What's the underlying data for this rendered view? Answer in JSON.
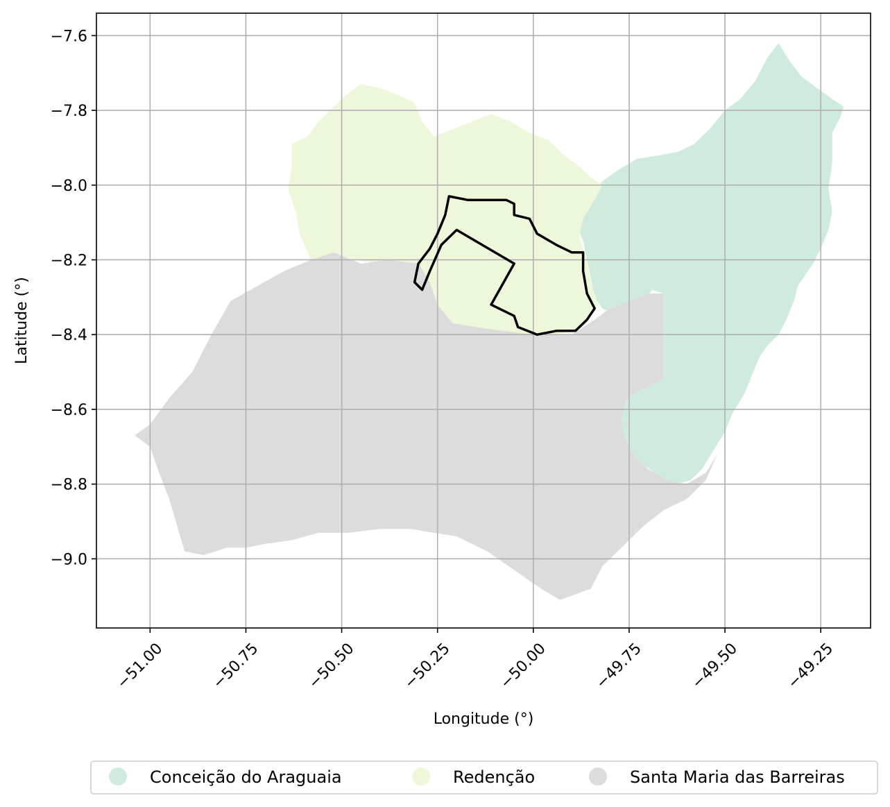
{
  "map": {
    "xlabel": "Longitude (°)",
    "ylabel": "Latitude (°)",
    "xlim": [
      -51.14,
      -49.12
    ],
    "ylim": [
      -9.185,
      -7.54
    ],
    "x_ticks": [
      -51.0,
      -50.75,
      -50.5,
      -50.25,
      -50.0,
      -49.75,
      -49.5,
      -49.25
    ],
    "x_tick_labels": [
      "−51.00",
      "−50.75",
      "−50.50",
      "−50.25",
      "−50.00",
      "−49.75",
      "−49.50",
      "−49.25"
    ],
    "y_ticks": [
      -7.6,
      -7.8,
      -8.0,
      -8.2,
      -8.4,
      -8.6,
      -8.8,
      -9.0
    ],
    "y_tick_labels": [
      "−7.6",
      "−7.8",
      "−8.0",
      "−8.2",
      "−8.4",
      "−8.6",
      "−8.8",
      "−9.0"
    ],
    "grid": true,
    "legend_position": "below",
    "regions": [
      {
        "name": "Conceição do Araguaia",
        "color": "#cfebde",
        "polygon": [
          [
            -49.36,
            -7.62
          ],
          [
            -49.33,
            -7.67
          ],
          [
            -49.3,
            -7.71
          ],
          [
            -49.26,
            -7.74
          ],
          [
            -49.22,
            -7.77
          ],
          [
            -49.19,
            -7.79
          ],
          [
            -49.2,
            -7.82
          ],
          [
            -49.22,
            -7.86
          ],
          [
            -49.22,
            -7.94
          ],
          [
            -49.23,
            -8.01
          ],
          [
            -49.22,
            -8.07
          ],
          [
            -49.23,
            -8.12
          ],
          [
            -49.25,
            -8.17
          ],
          [
            -49.27,
            -8.21
          ],
          [
            -49.29,
            -8.24
          ],
          [
            -49.31,
            -8.27
          ],
          [
            -49.32,
            -8.31
          ],
          [
            -49.34,
            -8.36
          ],
          [
            -49.36,
            -8.4
          ],
          [
            -49.39,
            -8.43
          ],
          [
            -49.41,
            -8.46
          ],
          [
            -49.43,
            -8.51
          ],
          [
            -49.45,
            -8.56
          ],
          [
            -49.48,
            -8.61
          ],
          [
            -49.5,
            -8.66
          ],
          [
            -49.53,
            -8.71
          ],
          [
            -49.56,
            -8.76
          ],
          [
            -49.59,
            -8.79
          ],
          [
            -49.63,
            -8.8
          ],
          [
            -49.67,
            -8.78
          ],
          [
            -49.71,
            -8.75
          ],
          [
            -49.74,
            -8.72
          ],
          [
            -49.76,
            -8.68
          ],
          [
            -49.77,
            -8.63
          ],
          [
            -49.76,
            -8.58
          ],
          [
            -49.74,
            -8.56
          ],
          [
            -49.7,
            -8.54
          ],
          [
            -49.66,
            -8.52
          ],
          [
            -49.66,
            -8.4
          ],
          [
            -49.66,
            -8.29
          ],
          [
            -49.69,
            -8.28
          ],
          [
            -49.71,
            -8.31
          ],
          [
            -49.74,
            -8.34
          ],
          [
            -49.78,
            -8.35
          ],
          [
            -49.82,
            -8.33
          ],
          [
            -49.84,
            -8.3
          ],
          [
            -49.85,
            -8.25
          ],
          [
            -49.86,
            -8.2
          ],
          [
            -49.87,
            -8.15
          ],
          [
            -49.89,
            -8.1
          ],
          [
            -49.88,
            -8.06
          ],
          [
            -49.85,
            -8.02
          ],
          [
            -49.82,
            -7.99
          ],
          [
            -49.78,
            -7.96
          ],
          [
            -49.73,
            -7.93
          ],
          [
            -49.67,
            -7.92
          ],
          [
            -49.62,
            -7.91
          ],
          [
            -49.58,
            -7.89
          ],
          [
            -49.54,
            -7.85
          ],
          [
            -49.5,
            -7.8
          ],
          [
            -49.46,
            -7.77
          ],
          [
            -49.42,
            -7.72
          ],
          [
            -49.39,
            -7.66
          ]
        ]
      },
      {
        "name": "Redenção",
        "color": "#edf8da",
        "polygon": [
          [
            -50.63,
            -7.89
          ],
          [
            -50.59,
            -7.87
          ],
          [
            -50.56,
            -7.83
          ],
          [
            -50.53,
            -7.8
          ],
          [
            -50.49,
            -7.76
          ],
          [
            -50.45,
            -7.73
          ],
          [
            -50.4,
            -7.74
          ],
          [
            -50.35,
            -7.76
          ],
          [
            -50.31,
            -7.78
          ],
          [
            -50.29,
            -7.83
          ],
          [
            -50.26,
            -7.87
          ],
          [
            -50.21,
            -7.85
          ],
          [
            -50.16,
            -7.83
          ],
          [
            -50.11,
            -7.81
          ],
          [
            -50.06,
            -7.83
          ],
          [
            -50.01,
            -7.86
          ],
          [
            -49.96,
            -7.88
          ],
          [
            -49.92,
            -7.92
          ],
          [
            -49.88,
            -7.95
          ],
          [
            -49.85,
            -7.98
          ],
          [
            -49.82,
            -8.0
          ],
          [
            -49.84,
            -8.04
          ],
          [
            -49.87,
            -8.09
          ],
          [
            -49.88,
            -8.14
          ],
          [
            -49.86,
            -8.2
          ],
          [
            -49.85,
            -8.26
          ],
          [
            -49.83,
            -8.32
          ],
          [
            -49.86,
            -8.36
          ],
          [
            -49.89,
            -8.39
          ],
          [
            -49.95,
            -8.4
          ],
          [
            -50.02,
            -8.4
          ],
          [
            -50.09,
            -8.39
          ],
          [
            -50.15,
            -8.38
          ],
          [
            -50.21,
            -8.37
          ],
          [
            -50.25,
            -8.32
          ],
          [
            -50.27,
            -8.26
          ],
          [
            -50.3,
            -8.22
          ],
          [
            -50.35,
            -8.21
          ],
          [
            -50.41,
            -8.21
          ],
          [
            -50.46,
            -8.2
          ],
          [
            -50.52,
            -8.19
          ],
          [
            -50.58,
            -8.2
          ],
          [
            -50.61,
            -8.13
          ],
          [
            -50.62,
            -8.07
          ],
          [
            -50.64,
            -8.01
          ],
          [
            -50.63,
            -7.95
          ]
        ]
      },
      {
        "name": "Santa Maria das Barreiras",
        "color": "#dcdcdc",
        "polygon": [
          [
            -51.04,
            -8.67
          ],
          [
            -51.0,
            -8.64
          ],
          [
            -50.95,
            -8.57
          ],
          [
            -50.89,
            -8.5
          ],
          [
            -50.84,
            -8.4
          ],
          [
            -50.79,
            -8.31
          ],
          [
            -50.72,
            -8.27
          ],
          [
            -50.65,
            -8.23
          ],
          [
            -50.58,
            -8.2
          ],
          [
            -50.52,
            -8.18
          ],
          [
            -50.45,
            -8.21
          ],
          [
            -50.38,
            -8.2
          ],
          [
            -50.3,
            -8.21
          ],
          [
            -50.27,
            -8.26
          ],
          [
            -50.25,
            -8.32
          ],
          [
            -50.21,
            -8.37
          ],
          [
            -50.15,
            -8.38
          ],
          [
            -50.08,
            -8.39
          ],
          [
            -50.0,
            -8.4
          ],
          [
            -49.9,
            -8.4
          ],
          [
            -49.84,
            -8.36
          ],
          [
            -49.8,
            -8.33
          ],
          [
            -49.75,
            -8.31
          ],
          [
            -49.7,
            -8.29
          ],
          [
            -49.66,
            -8.29
          ],
          [
            -49.66,
            -8.4
          ],
          [
            -49.66,
            -8.52
          ],
          [
            -49.7,
            -8.54
          ],
          [
            -49.74,
            -8.56
          ],
          [
            -49.76,
            -8.58
          ],
          [
            -49.77,
            -8.63
          ],
          [
            -49.76,
            -8.68
          ],
          [
            -49.74,
            -8.72
          ],
          [
            -49.7,
            -8.76
          ],
          [
            -49.65,
            -8.79
          ],
          [
            -49.6,
            -8.8
          ],
          [
            -49.55,
            -8.77
          ],
          [
            -49.52,
            -8.72
          ],
          [
            -49.55,
            -8.79
          ],
          [
            -49.6,
            -8.84
          ],
          [
            -49.66,
            -8.87
          ],
          [
            -49.71,
            -8.91
          ],
          [
            -49.76,
            -8.96
          ],
          [
            -49.82,
            -9.02
          ],
          [
            -49.85,
            -9.08
          ],
          [
            -49.93,
            -9.11
          ],
          [
            -49.98,
            -9.08
          ],
          [
            -50.05,
            -9.03
          ],
          [
            -50.12,
            -8.98
          ],
          [
            -50.2,
            -8.94
          ],
          [
            -50.26,
            -8.93
          ],
          [
            -50.32,
            -8.92
          ],
          [
            -50.4,
            -8.92
          ],
          [
            -50.48,
            -8.93
          ],
          [
            -50.56,
            -8.93
          ],
          [
            -50.63,
            -8.95
          ],
          [
            -50.7,
            -8.96
          ],
          [
            -50.75,
            -8.97
          ],
          [
            -50.8,
            -8.97
          ],
          [
            -50.86,
            -8.99
          ],
          [
            -50.91,
            -8.98
          ],
          [
            -50.93,
            -8.91
          ],
          [
            -50.95,
            -8.84
          ],
          [
            -50.98,
            -8.76
          ],
          [
            -51.0,
            -8.7
          ]
        ]
      }
    ],
    "boundary": {
      "color": "#000000",
      "polygon": [
        [
          -50.31,
          -8.26
        ],
        [
          -50.3,
          -8.21
        ],
        [
          -50.27,
          -8.17
        ],
        [
          -50.25,
          -8.13
        ],
        [
          -50.23,
          -8.08
        ],
        [
          -50.22,
          -8.03
        ],
        [
          -50.17,
          -8.04
        ],
        [
          -50.12,
          -8.04
        ],
        [
          -50.07,
          -8.04
        ],
        [
          -50.05,
          -8.05
        ],
        [
          -50.05,
          -8.08
        ],
        [
          -50.01,
          -8.09
        ],
        [
          -49.99,
          -8.13
        ],
        [
          -49.94,
          -8.16
        ],
        [
          -49.9,
          -8.18
        ],
        [
          -49.87,
          -8.18
        ],
        [
          -49.87,
          -8.23
        ],
        [
          -49.86,
          -8.29
        ],
        [
          -49.84,
          -8.33
        ],
        [
          -49.86,
          -8.36
        ],
        [
          -49.89,
          -8.39
        ],
        [
          -49.94,
          -8.39
        ],
        [
          -49.99,
          -8.4
        ],
        [
          -50.04,
          -8.38
        ],
        [
          -50.05,
          -8.35
        ],
        [
          -50.11,
          -8.32
        ],
        [
          -50.05,
          -8.21
        ],
        [
          -50.2,
          -8.12
        ],
        [
          -50.24,
          -8.16
        ],
        [
          -50.27,
          -8.23
        ],
        [
          -50.29,
          -8.28
        ]
      ]
    },
    "legend": [
      {
        "label": "Conceição do Araguaia",
        "color": "#cfebde"
      },
      {
        "label": "Redenção",
        "color": "#edf8da"
      },
      {
        "label": "Santa Maria das Barreiras",
        "color": "#dcdcdc"
      }
    ]
  }
}
